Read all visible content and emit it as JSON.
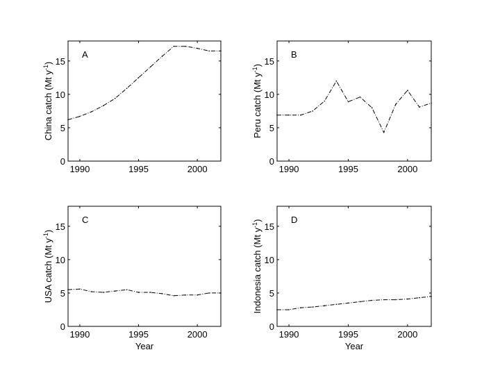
{
  "chart_data": [
    {
      "type": "line",
      "panel_label": "A",
      "ylabel": "China catch (Mt y",
      "ylabel_sup": "-1",
      "ylabel_end": ")",
      "xlabel": "",
      "xlim": [
        1989,
        2002
      ],
      "ylim": [
        0,
        18
      ],
      "xticks": [
        1990,
        1995,
        2000
      ],
      "yticks": [
        0,
        5,
        10,
        15
      ],
      "x": [
        1989,
        1990,
        1991,
        1992,
        1993,
        1994,
        1995,
        1996,
        1997,
        1998,
        1999,
        2000,
        2001,
        2002
      ],
      "values": [
        6.2,
        6.7,
        7.4,
        8.3,
        9.4,
        10.9,
        12.5,
        14.1,
        15.7,
        17.2,
        17.2,
        16.9,
        16.5,
        16.5
      ]
    },
    {
      "type": "line",
      "panel_label": "B",
      "ylabel": "Peru catch (Mt y",
      "ylabel_sup": "-1",
      "ylabel_end": ")",
      "xlabel": "",
      "xlim": [
        1989,
        2002
      ],
      "ylim": [
        0,
        18
      ],
      "xticks": [
        1990,
        1995,
        2000
      ],
      "yticks": [
        0,
        5,
        10,
        15
      ],
      "x": [
        1989,
        1990,
        1991,
        1992,
        1993,
        1994,
        1995,
        1996,
        1997,
        1998,
        1999,
        2000,
        2001,
        2002
      ],
      "values": [
        6.9,
        6.9,
        6.9,
        7.5,
        9.0,
        12.0,
        8.9,
        9.6,
        8.0,
        4.3,
        8.5,
        10.6,
        8.1,
        8.7
      ]
    },
    {
      "type": "line",
      "panel_label": "C",
      "ylabel": "USA catch (Mt y",
      "ylabel_sup": "-1",
      "ylabel_end": ")",
      "xlabel": "Year",
      "xlim": [
        1989,
        2002
      ],
      "ylim": [
        0,
        18
      ],
      "xticks": [
        1990,
        1995,
        2000
      ],
      "yticks": [
        0,
        5,
        10,
        15
      ],
      "x": [
        1989,
        1990,
        1991,
        1992,
        1993,
        1994,
        1995,
        1996,
        1997,
        1998,
        1999,
        2000,
        2001,
        2002
      ],
      "values": [
        5.5,
        5.6,
        5.2,
        5.1,
        5.3,
        5.5,
        5.1,
        5.1,
        4.9,
        4.6,
        4.7,
        4.7,
        5.0,
        5.0
      ]
    },
    {
      "type": "line",
      "panel_label": "D",
      "ylabel": "Indonesia catch (Mt y",
      "ylabel_sup": "-1",
      "ylabel_end": ")",
      "xlabel": "Year",
      "xlim": [
        1989,
        2002
      ],
      "ylim": [
        0,
        18
      ],
      "xticks": [
        1990,
        1995,
        2000
      ],
      "yticks": [
        0,
        5,
        10,
        15
      ],
      "x": [
        1989,
        1990,
        1991,
        1992,
        1993,
        1994,
        1995,
        1996,
        1997,
        1998,
        1999,
        2000,
        2001,
        2002
      ],
      "values": [
        2.5,
        2.5,
        2.8,
        2.9,
        3.1,
        3.3,
        3.5,
        3.7,
        3.9,
        4.0,
        4.0,
        4.1,
        4.3,
        4.5
      ]
    }
  ]
}
